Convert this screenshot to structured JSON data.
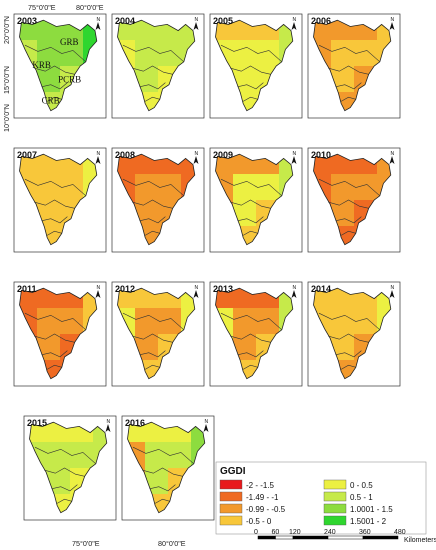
{
  "figure": {
    "panels": [
      {
        "year": "2003",
        "pal": [
          6,
          6,
          5,
          5,
          7
        ]
      },
      {
        "year": "2004",
        "pal": [
          5,
          5,
          4,
          4,
          5
        ]
      },
      {
        "year": "2005",
        "pal": [
          3,
          4,
          4,
          4,
          5
        ]
      },
      {
        "year": "2006",
        "pal": [
          2,
          3,
          2,
          2,
          3
        ]
      },
      {
        "year": "2007",
        "pal": [
          3,
          3,
          3,
          3,
          4
        ]
      },
      {
        "year": "2008",
        "pal": [
          1,
          2,
          2,
          1,
          1
        ]
      },
      {
        "year": "2009",
        "pal": [
          2,
          4,
          3,
          2,
          5
        ]
      },
      {
        "year": "2010",
        "pal": [
          1,
          2,
          1,
          1,
          2
        ]
      },
      {
        "year": "2011",
        "pal": [
          1,
          2,
          1,
          1,
          3
        ]
      },
      {
        "year": "2012",
        "pal": [
          3,
          2,
          3,
          4,
          4
        ]
      },
      {
        "year": "2013",
        "pal": [
          1,
          2,
          3,
          4,
          5
        ]
      },
      {
        "year": "2014",
        "pal": [
          3,
          3,
          2,
          3,
          4
        ]
      },
      {
        "year": "2015",
        "pal": [
          4,
          5,
          4,
          5,
          5
        ]
      },
      {
        "year": "2016",
        "pal": [
          4,
          5,
          3,
          2,
          6
        ]
      }
    ],
    "basin_labels": [
      "GRB",
      "KRB",
      "PCRB",
      "CRB"
    ],
    "coord_labels": {
      "top_left": "75°0'0\"E",
      "top_right": "80°0'0\"E",
      "bottom_left": "75°0'0\"E",
      "bottom_right": "80°0'0\"E",
      "lat_20": "20°0'0\"N",
      "lat_15": "15°0'0\"N",
      "lat_10": "10°0'0\"N"
    },
    "north_label": "N",
    "legend": {
      "title": "GGDI",
      "classes": [
        {
          "label": "-2 - -1.5",
          "color": "#e8191c"
        },
        {
          "label": "-1.49 - -1",
          "color": "#ef6a22"
        },
        {
          "label": "-0.99 - -0.5",
          "color": "#f2992c"
        },
        {
          "label": "-0.5 - 0",
          "color": "#f8c73a"
        },
        {
          "label": "0 - 0.5",
          "color": "#ecf042"
        },
        {
          "label": "0.5 - 1",
          "color": "#c6ea4a"
        },
        {
          "label": "1.0001 - 1.5",
          "color": "#8ddc3f"
        },
        {
          "label": "1.5001 - 2",
          "color": "#2fd62f"
        }
      ]
    },
    "scale_bar": {
      "ticks": [
        "0",
        "60",
        "120",
        "240",
        "360",
        "480"
      ],
      "unit": "Kilometers"
    }
  }
}
